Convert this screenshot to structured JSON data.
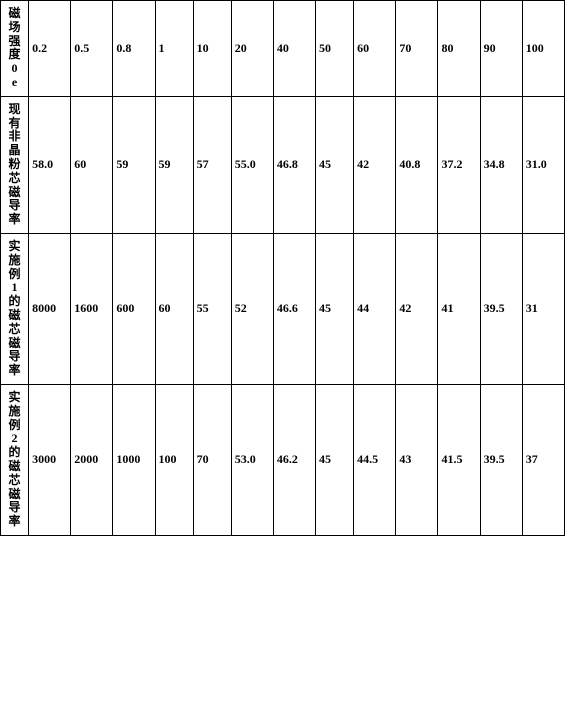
{
  "table": {
    "background_color": "#ffffff",
    "border_color": "#000000",
    "font_size": 12,
    "font_weight": "bold",
    "columns_count": 14,
    "rows": [
      {
        "label": "磁场强度0e",
        "values": [
          "0.2",
          "0.5",
          "0.8",
          "1",
          "10",
          "20",
          "40",
          "50",
          "60",
          "70",
          "80",
          "90",
          "100"
        ]
      },
      {
        "label": "现有非晶粉芯磁导率",
        "values": [
          "58.0",
          "60",
          "59",
          "59",
          "57",
          "55.0",
          "46.8",
          "45",
          "42",
          "40.8",
          "37.2",
          "34.8",
          "31.0"
        ]
      },
      {
        "label": "实施例1的磁芯磁导率",
        "values": [
          "8000",
          "1600",
          "600",
          "60",
          "55",
          "52",
          "46.6",
          "45",
          "44",
          "42",
          "41",
          "39.5",
          "31"
        ]
      },
      {
        "label": "实施例2的磁芯磁导率",
        "values": [
          "3000",
          "2000",
          "1000",
          "100",
          "70",
          "53.0",
          "46.2",
          "45",
          "44.5",
          "43",
          "41.5",
          "39.5",
          "37"
        ]
      }
    ]
  }
}
